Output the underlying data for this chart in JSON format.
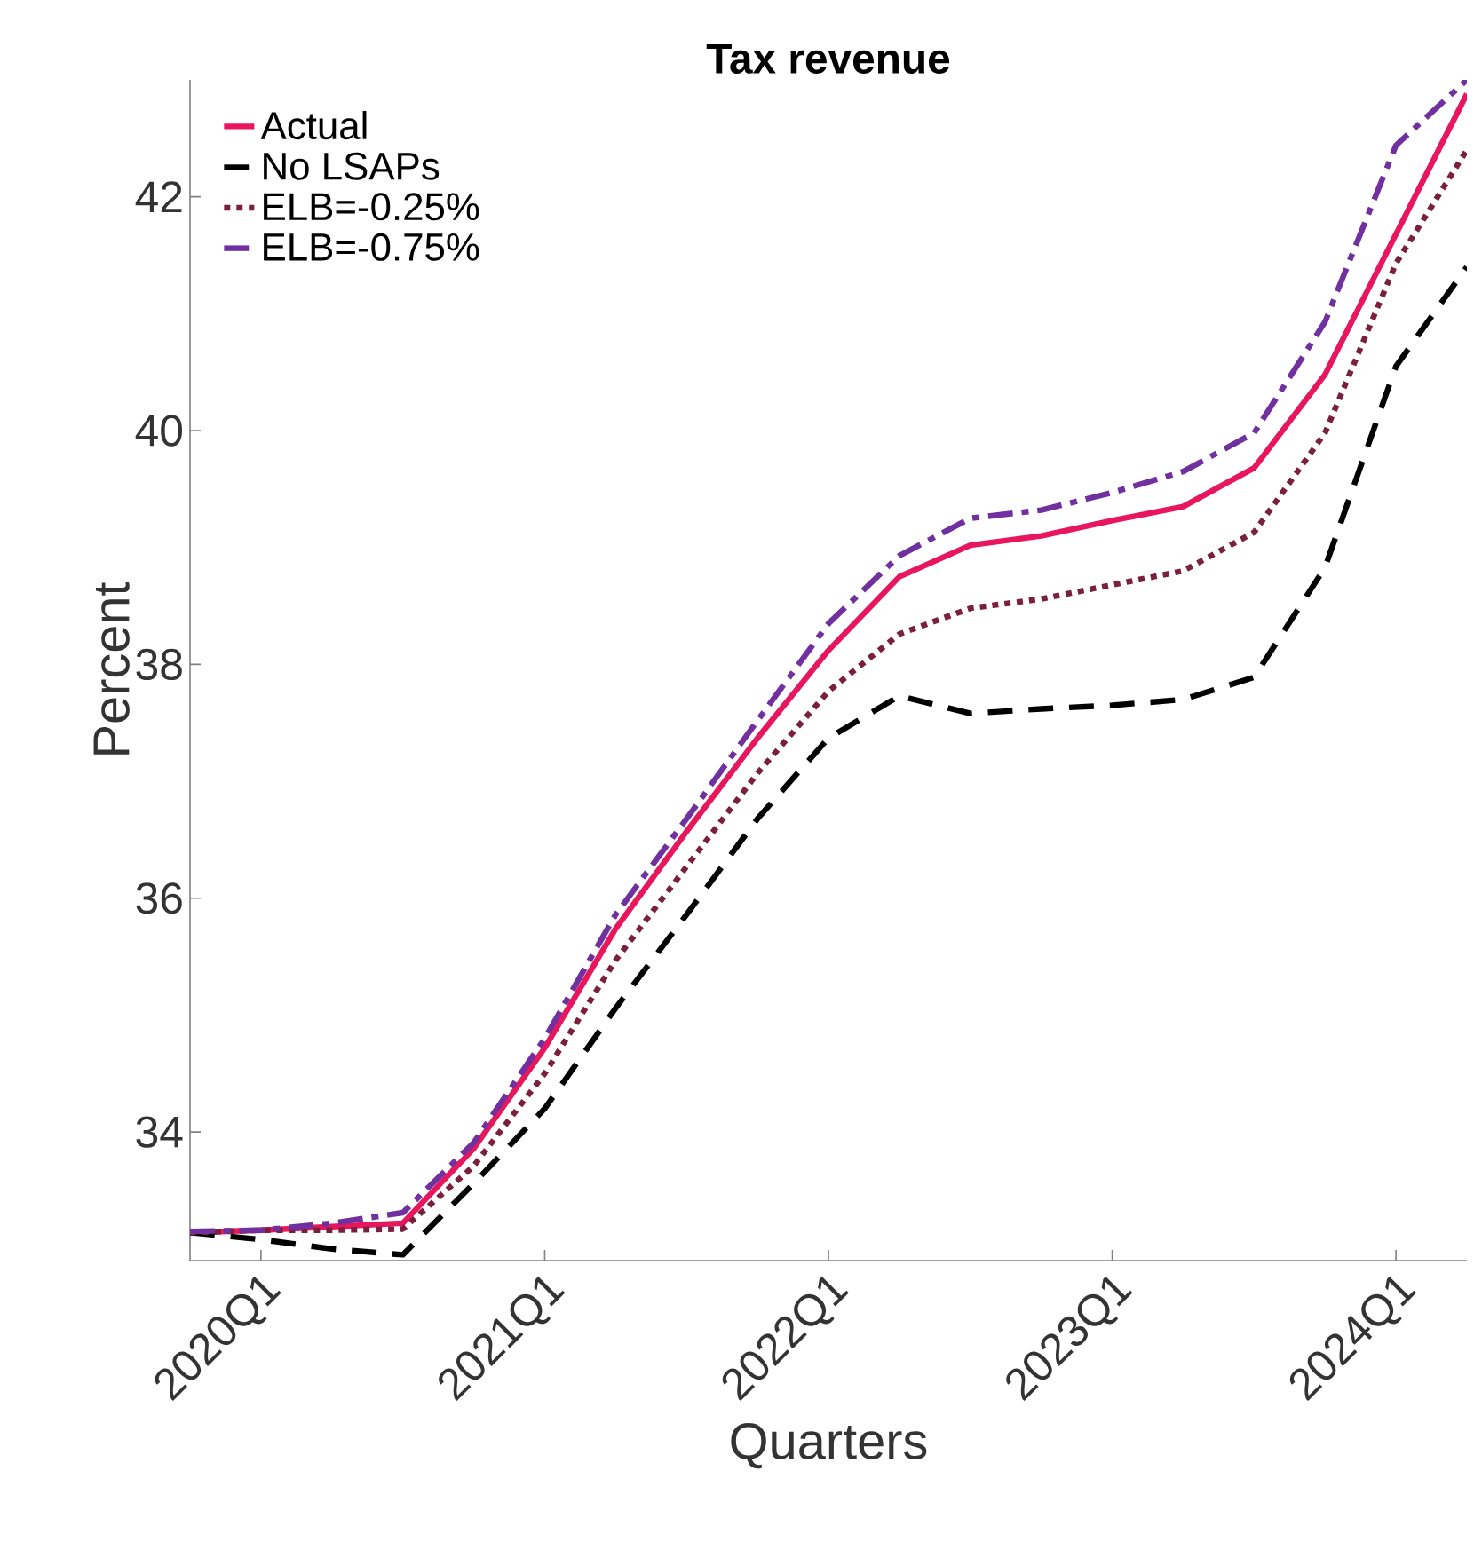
{
  "chart_data": {
    "type": "line",
    "title": "Tax revenue",
    "xlabel": "Quarters",
    "ylabel": "Percent",
    "categories": [
      null,
      "2020Q1",
      null,
      null,
      null,
      "2021Q1",
      null,
      null,
      null,
      "2022Q1",
      null,
      null,
      null,
      "2023Q1",
      null,
      null,
      null,
      "2024Q1",
      null
    ],
    "ylim": [
      32.9,
      43
    ],
    "yticks": [
      34,
      36,
      38,
      40,
      42
    ],
    "legend": "top left",
    "grid": false,
    "series": [
      {
        "name": "Actual",
        "color": "#e8175d",
        "line_style": "solid",
        "values": [
          33.14,
          33.16,
          33.19,
          33.22,
          33.86,
          34.72,
          35.74,
          36.57,
          37.37,
          38.12,
          38.75,
          39.02,
          39.1,
          39.23,
          39.35,
          39.68,
          40.48,
          41.68,
          42.88
        ]
      },
      {
        "name": "No LSAPs",
        "color": "#000000",
        "line_style": "dashed",
        "values": [
          33.14,
          33.08,
          33.0,
          32.95,
          33.56,
          34.2,
          35.06,
          35.86,
          36.68,
          37.37,
          37.73,
          37.58,
          37.62,
          37.65,
          37.7,
          37.89,
          38.83,
          40.55,
          41.4
        ]
      },
      {
        "name": "ELB=-0.25%",
        "color": "#7b1f3f",
        "line_style": "dotted",
        "values": [
          33.14,
          33.16,
          33.16,
          33.17,
          33.71,
          34.5,
          35.47,
          36.27,
          37.07,
          37.77,
          38.26,
          38.48,
          38.56,
          38.68,
          38.8,
          39.13,
          39.98,
          41.43,
          42.4
        ]
      },
      {
        "name": "ELB=-0.75%",
        "color": "#7030a0",
        "line_style": "dashdot",
        "values": [
          33.15,
          33.16,
          33.22,
          33.31,
          33.91,
          34.8,
          35.86,
          36.68,
          37.52,
          38.35,
          38.93,
          39.25,
          39.32,
          39.47,
          39.65,
          39.98,
          40.93,
          42.44,
          43.0
        ]
      }
    ]
  }
}
